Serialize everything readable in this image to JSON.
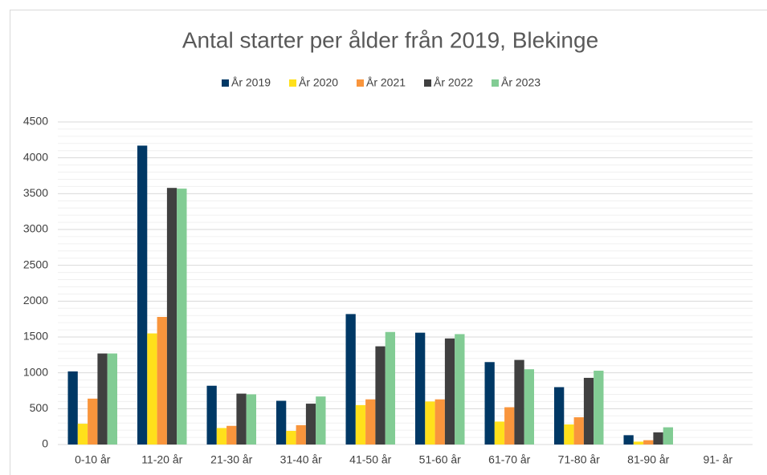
{
  "chart_data": {
    "type": "bar",
    "title": "Antal starter per ålder från 2019, Blekinge",
    "categories": [
      "0-10 år",
      "11-20 år",
      "21-30 år",
      "31-40 år",
      "41-50 år",
      "51-60 år",
      "61-70 år",
      "71-80 år",
      "81-90 år",
      "91- år"
    ],
    "series": [
      {
        "name": "År 2019",
        "color": "#003865",
        "values": [
          1020,
          4170,
          820,
          610,
          1820,
          1560,
          1150,
          800,
          130,
          0
        ]
      },
      {
        "name": "År 2020",
        "color": "#ffe01b",
        "values": [
          290,
          1550,
          230,
          190,
          550,
          600,
          320,
          280,
          40,
          0
        ]
      },
      {
        "name": "År 2021",
        "color": "#f9953c",
        "values": [
          640,
          1780,
          260,
          270,
          630,
          630,
          520,
          380,
          60,
          0
        ]
      },
      {
        "name": "År 2022",
        "color": "#404040",
        "values": [
          1270,
          3580,
          710,
          570,
          1370,
          1480,
          1180,
          930,
          170,
          0
        ]
      },
      {
        "name": "År 2023",
        "color": "#82cc94",
        "values": [
          1270,
          3570,
          700,
          670,
          1570,
          1540,
          1050,
          1030,
          240,
          0
        ]
      }
    ],
    "ylim": [
      0,
      4500
    ],
    "yticks": [
      0,
      500,
      1000,
      1500,
      2000,
      2500,
      3000,
      3500,
      4000,
      4500
    ],
    "grid": true,
    "legend": "top"
  }
}
